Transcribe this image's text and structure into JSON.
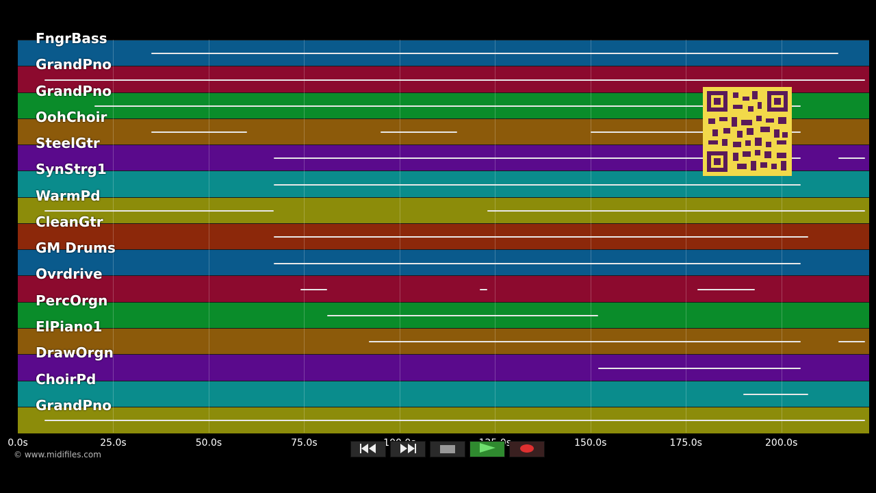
{
  "tracks": [
    {
      "name": "FngrBass",
      "color": "#0a5a8c",
      "notes": [
        [
          35,
          215
        ]
      ]
    },
    {
      "name": "GrandPno",
      "color": "#8c0a2e",
      "notes": [
        [
          7,
          222
        ]
      ]
    },
    {
      "name": "GrandPno",
      "color": "#0a8c2a",
      "notes": [
        [
          20,
          205
        ]
      ]
    },
    {
      "name": "OohChoir",
      "color": "#8c5a0a",
      "notes": [
        [
          35,
          60
        ],
        [
          95,
          115
        ],
        [
          150,
          205
        ]
      ]
    },
    {
      "name": "SteelGtr",
      "color": "#5a0a8c",
      "notes": [
        [
          67,
          205
        ],
        [
          215,
          222
        ]
      ]
    },
    {
      "name": "SynStrg1",
      "color": "#0a8c8c",
      "notes": [
        [
          67,
          205
        ]
      ]
    },
    {
      "name": "WarmPd",
      "color": "#8c8c0a",
      "notes": [
        [
          7,
          67
        ],
        [
          123,
          222
        ]
      ]
    },
    {
      "name": "CleanGtr",
      "color": "#8c280a",
      "notes": [
        [
          67,
          207
        ]
      ]
    },
    {
      "name": "GM Drums",
      "color": "#0a5a8c",
      "notes": [
        [
          67,
          205
        ]
      ]
    },
    {
      "name": "Ovrdrive",
      "color": "#8c0a2e",
      "notes": [
        [
          74,
          81
        ],
        [
          121,
          123
        ],
        [
          178,
          193
        ]
      ]
    },
    {
      "name": "PercOrgn",
      "color": "#0a8c2a",
      "notes": [
        [
          81,
          152
        ]
      ]
    },
    {
      "name": "ElPiano1",
      "color": "#8c5a0a",
      "notes": [
        [
          92,
          205
        ],
        [
          215,
          222
        ]
      ]
    },
    {
      "name": "DrawOrgn",
      "color": "#5a0a8c",
      "notes": [
        [
          152,
          205
        ]
      ]
    },
    {
      "name": "ChoirPd",
      "color": "#0a8c8c",
      "notes": [
        [
          190,
          207
        ]
      ]
    },
    {
      "name": "GrandPno",
      "color": "#8c8c0a",
      "notes": [
        [
          7,
          222
        ]
      ]
    }
  ],
  "timeline": {
    "start_s": 0,
    "end_s": 223,
    "ticks": [
      {
        "t": 0,
        "label": "0.0s"
      },
      {
        "t": 25,
        "label": "25.0s"
      },
      {
        "t": 50,
        "label": "50.0s"
      },
      {
        "t": 75,
        "label": "75.0s"
      },
      {
        "t": 100,
        "label": "100.0s"
      },
      {
        "t": 125,
        "label": "125.0s"
      },
      {
        "t": 150,
        "label": "150.0s"
      },
      {
        "t": 175,
        "label": "175.0s"
      },
      {
        "t": 200,
        "label": "200.0s"
      }
    ]
  },
  "copyright": "© www.midifiles.com",
  "transport": {
    "rewind_icon": "rewind-icon",
    "forward_icon": "fast-forward-icon",
    "stop_icon": "stop-icon",
    "play_icon": "play-icon",
    "record_icon": "record-icon",
    "play_color": "#2f8a2f",
    "record_color": "#e03030"
  }
}
